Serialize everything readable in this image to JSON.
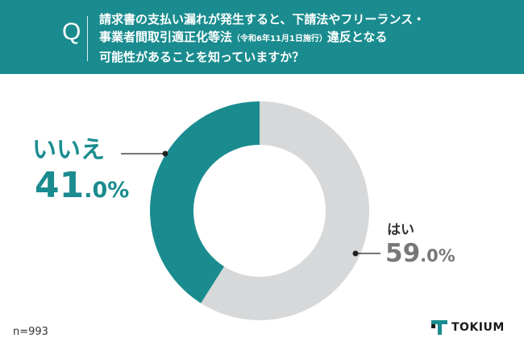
{
  "header": {
    "q_mark": "Q",
    "line1": "請求書の支払い漏れが発生すると、下請法やフリーランス・",
    "line2_main": "事業者間取引適正化等法",
    "line2_note": "（令和6年11月1日施行）",
    "line2_tail": "違反となる",
    "line3": "可能性があることを知っていますか？"
  },
  "chart_data": {
    "type": "pie",
    "donut": true,
    "slices": [
      {
        "label": "はい",
        "value": 59.0,
        "value_int": "59",
        "value_dec": ".0%",
        "color": "#d6d8d9",
        "text_color": "#777777"
      },
      {
        "label": "いいえ",
        "value": 41.0,
        "value_int": "41",
        "value_dec": ".0%",
        "color": "#1a8c8f",
        "text_color": "#1a8c8f"
      }
    ],
    "start": "top",
    "direction": "clockwise"
  },
  "footer": {
    "n_label": "n=993",
    "logo_text": "TOKIUM",
    "logo_color": "#1a8c8f"
  }
}
